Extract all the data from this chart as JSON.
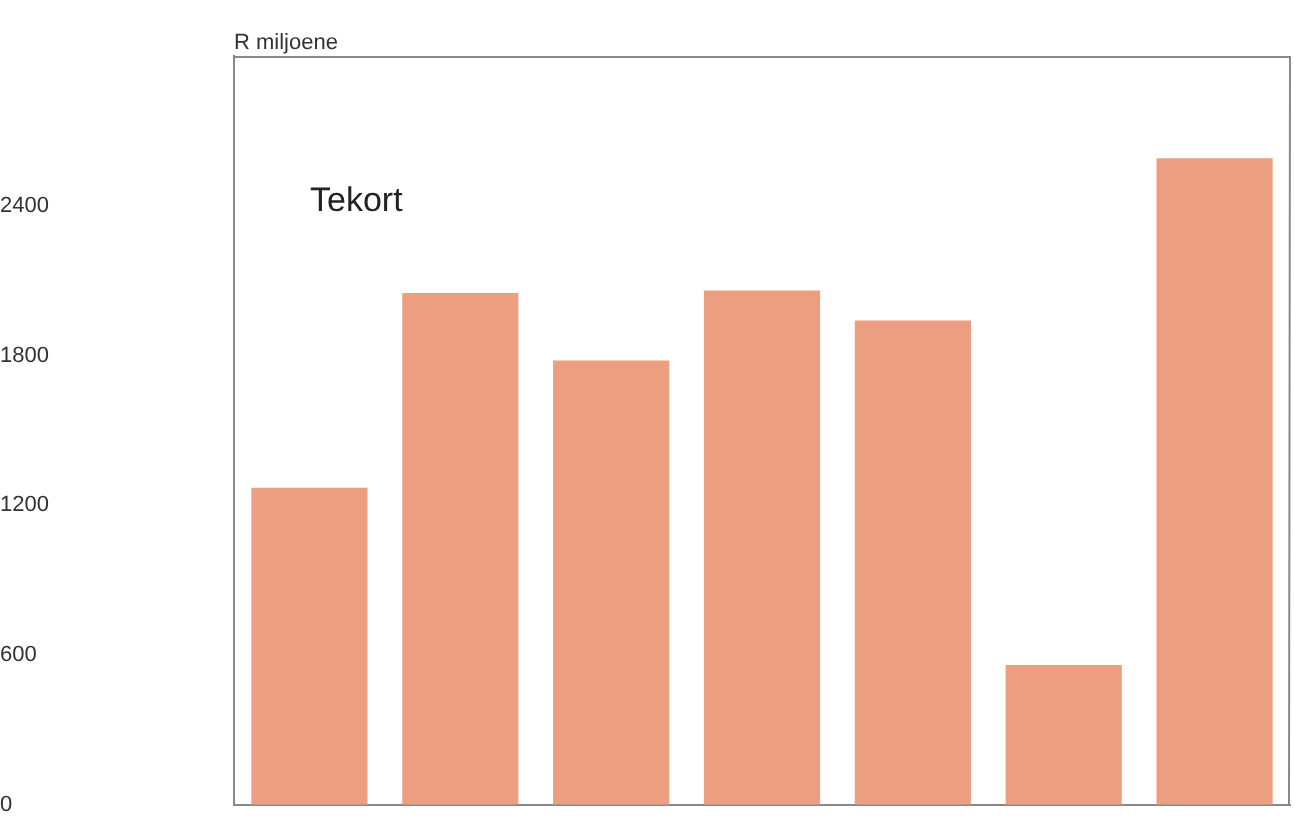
{
  "chart_data": {
    "type": "bar",
    "ylabel": "R miljoene",
    "annotations": [
      "Tekort"
    ],
    "categories": [
      null,
      null,
      null,
      null,
      null,
      null,
      null
    ],
    "values": [
      1270,
      2050,
      1780,
      2060,
      1940,
      560,
      2590
    ],
    "color": "#eb9f80",
    "ylim": [
      0,
      3000
    ],
    "yticks": [
      0,
      600,
      1200,
      1800,
      2400
    ],
    "grid": false
  }
}
